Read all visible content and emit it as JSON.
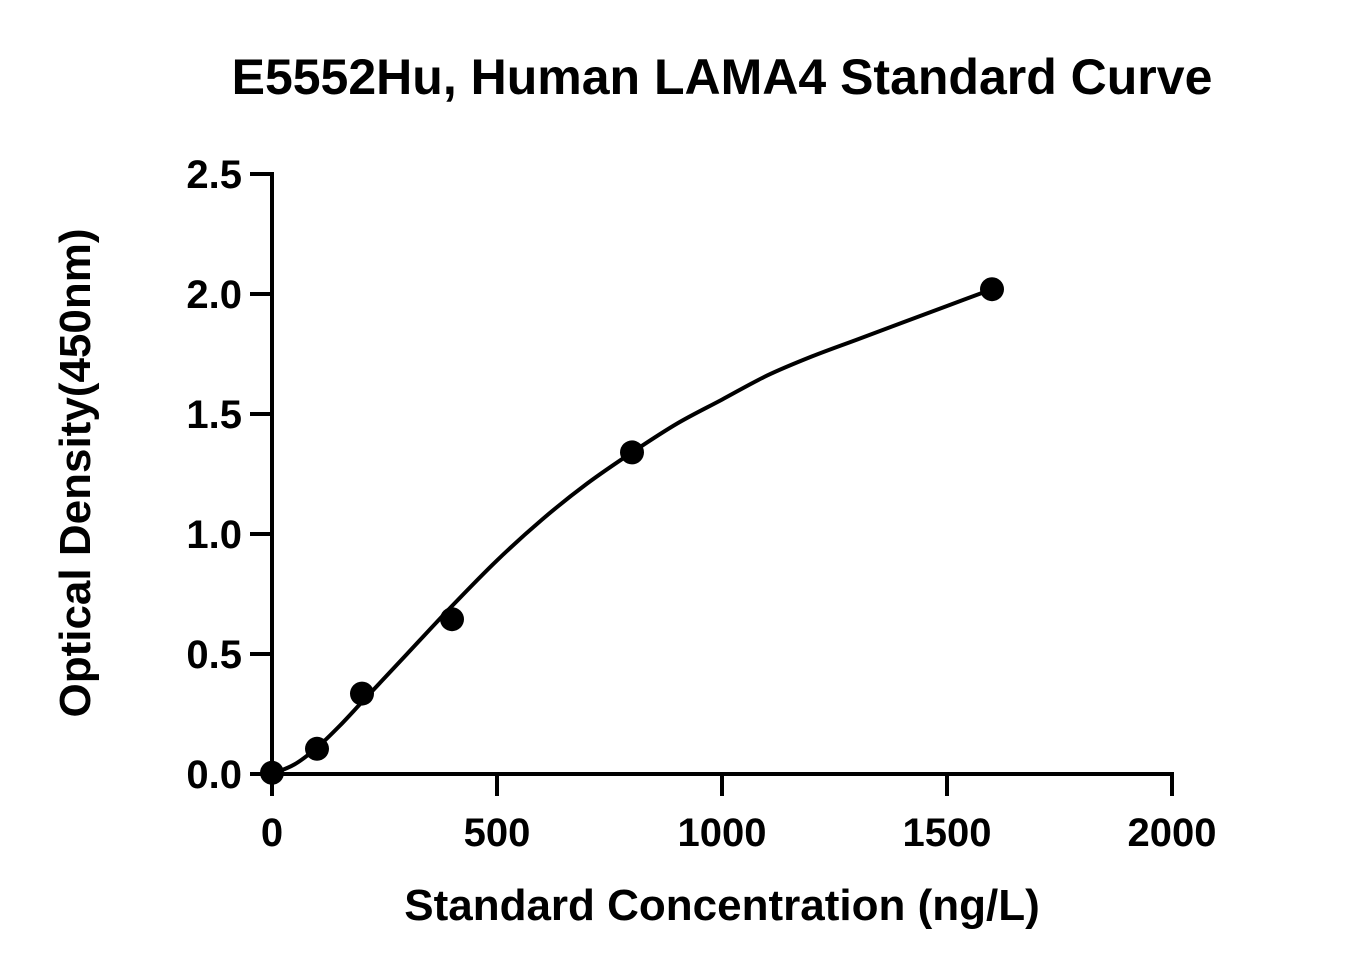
{
  "chart_data": {
    "type": "scatter",
    "title": "E5552Hu, Human LAMA4 Standard Curve",
    "xlabel": "Standard Concentration (ng/L)",
    "ylabel": "Optical Density(450nm)",
    "xlim": [
      0,
      2000
    ],
    "ylim": [
      0,
      2.5
    ],
    "x_ticks": [
      0,
      500,
      1000,
      1500,
      2000
    ],
    "x_tick_labels": [
      "0",
      "500",
      "1000",
      "1500",
      "2000"
    ],
    "y_ticks": [
      0,
      0.5,
      1.0,
      1.5,
      2.0,
      2.5
    ],
    "y_tick_labels": [
      "0.0",
      "0.5",
      "1.0",
      "1.5",
      "2.0",
      "2.5"
    ],
    "grid": false,
    "series": [
      {
        "points": [
          {
            "x": 0,
            "y": 0.005
          },
          {
            "x": 100,
            "y": 0.105
          },
          {
            "x": 200,
            "y": 0.335
          },
          {
            "x": 400,
            "y": 0.645
          },
          {
            "x": 800,
            "y": 1.34
          },
          {
            "x": 1600,
            "y": 2.02
          }
        ]
      }
    ],
    "fit_curve": {
      "type": "four-parameter logistic",
      "x": [
        0,
        50,
        100,
        150,
        200,
        250,
        300,
        400,
        500,
        600,
        700,
        800,
        900,
        1000,
        1100,
        1200,
        1300,
        1400,
        1500,
        1600
      ],
      "y": [
        0.0,
        0.04,
        0.11,
        0.2,
        0.3,
        0.4,
        0.5,
        0.7,
        0.89,
        1.06,
        1.21,
        1.34,
        1.46,
        1.56,
        1.66,
        1.74,
        1.81,
        1.88,
        1.95,
        2.02
      ]
    },
    "colors": {
      "points": "#000000",
      "curve": "#000000",
      "axes": "#000000"
    }
  }
}
